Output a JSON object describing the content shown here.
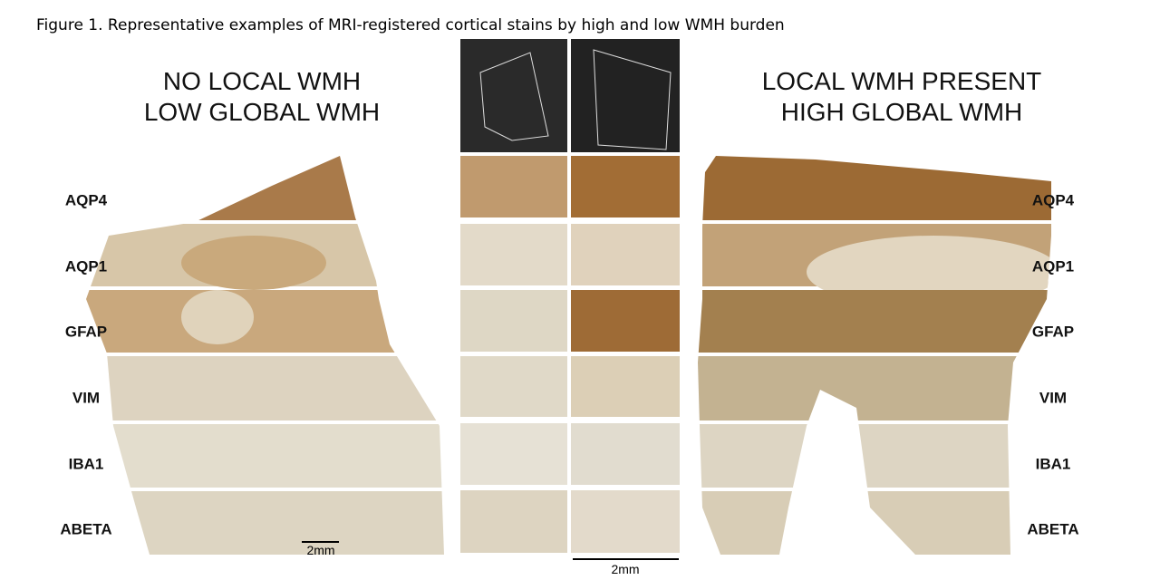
{
  "title": "Figure 1. Representative examples of MRI-registered cortical stains by high and low WMH burden",
  "left_panel": {
    "heading": [
      "NO LOCAL WMH",
      "LOW GLOBAL WMH"
    ],
    "stains": [
      "AQP4",
      "AQP1",
      "GFAP",
      "VIM",
      "IBA1",
      "ABETA"
    ],
    "scale_bar": "2mm"
  },
  "right_panel": {
    "heading": [
      "LOCAL WMH PRESENT",
      "HIGH GLOBAL WMH"
    ],
    "stains": [
      "AQP4",
      "AQP1",
      "GFAP",
      "VIM",
      "IBA1",
      "ABETA"
    ]
  },
  "center_panel": {
    "scale_bar": "2mm"
  }
}
